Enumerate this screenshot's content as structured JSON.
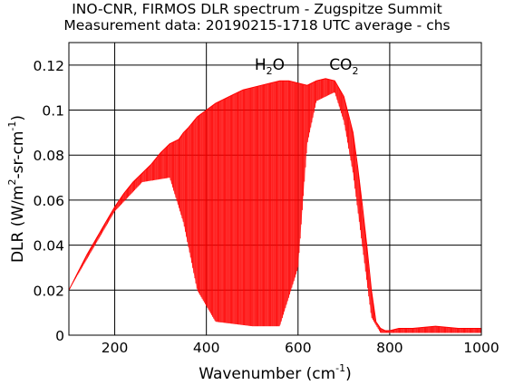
{
  "chart_data": {
    "type": "line",
    "title": "INO-CNR, FIRMOS DLR spectrum - Zugspitze Summit",
    "subtitle": "Measurement data: 20190215-1718 UTC average - chs",
    "xlabel": "Wavenumber (cm-1)",
    "xlabel_main": "Wavenumber (cm",
    "xlabel_sup": "-1",
    "xlabel_end": ")",
    "ylabel": "DLR (W/m2-sr-cm-1)",
    "ylabel_p1": "DLR (W/m",
    "ylabel_sup1": "2",
    "ylabel_p2": "-sr-cm",
    "ylabel_sup2": "-1",
    "ylabel_end": ")",
    "xlim": [
      100,
      1000
    ],
    "ylim": [
      0,
      0.13
    ],
    "xticks": [
      200,
      400,
      600,
      800,
      1000
    ],
    "xtick_labels": [
      "200",
      "400",
      "600",
      "800",
      "1000"
    ],
    "yticks": [
      0,
      0.02,
      0.04,
      0.06,
      0.08,
      0.1,
      0.12
    ],
    "ytick_labels": [
      "0",
      "0.02",
      "0.04",
      "0.06",
      "0.08",
      "0.1",
      "0.12"
    ],
    "grid": true,
    "line_color": "#ff0000",
    "annotations": [
      {
        "base": "H",
        "sub": "2",
        "rest": "O",
        "x": 538
      },
      {
        "base": "CO",
        "sub": "2",
        "rest": "",
        "x": 700
      }
    ],
    "series": [
      {
        "x": [
          100,
          120,
          140,
          160,
          180,
          200,
          220,
          240,
          260,
          280,
          300,
          320,
          340,
          350,
          360,
          380,
          400,
          420,
          440,
          460,
          480,
          500,
          520,
          540,
          560,
          580,
          600,
          620,
          640,
          660,
          680,
          700,
          710,
          720,
          730,
          740,
          750,
          760,
          770,
          780,
          790,
          800,
          820,
          850,
          900,
          950,
          1000
        ],
        "y": [
          0.02,
          0.028,
          0.036,
          0.043,
          0.05,
          0.057,
          0.063,
          0.068,
          0.072,
          0.076,
          0.081,
          0.085,
          0.087,
          0.09,
          0.092,
          0.097,
          0.1,
          0.103,
          0.105,
          0.107,
          0.109,
          0.11,
          0.111,
          0.112,
          0.113,
          0.113,
          0.112,
          0.111,
          0.113,
          0.114,
          0.113,
          0.106,
          0.098,
          0.09,
          0.075,
          0.058,
          0.04,
          0.02,
          0.006,
          0.003,
          0.002,
          0.002,
          0.003,
          0.003,
          0.004,
          0.003,
          0.003
        ]
      }
    ],
    "line_min": [
      {
        "x": 100,
        "y": 0.02
      },
      {
        "x": 200,
        "y": 0.055
      },
      {
        "x": 260,
        "y": 0.068
      },
      {
        "x": 320,
        "y": 0.07
      },
      {
        "x": 350,
        "y": 0.05
      },
      {
        "x": 380,
        "y": 0.02
      },
      {
        "x": 420,
        "y": 0.006
      },
      {
        "x": 500,
        "y": 0.004
      },
      {
        "x": 560,
        "y": 0.004
      },
      {
        "x": 600,
        "y": 0.03
      },
      {
        "x": 620,
        "y": 0.085
      },
      {
        "x": 640,
        "y": 0.104
      },
      {
        "x": 680,
        "y": 0.108
      },
      {
        "x": 700,
        "y": 0.095
      },
      {
        "x": 720,
        "y": 0.072
      },
      {
        "x": 740,
        "y": 0.04
      },
      {
        "x": 760,
        "y": 0.008
      },
      {
        "x": 780,
        "y": 0.001
      },
      {
        "x": 1000,
        "y": 0.001
      }
    ]
  }
}
